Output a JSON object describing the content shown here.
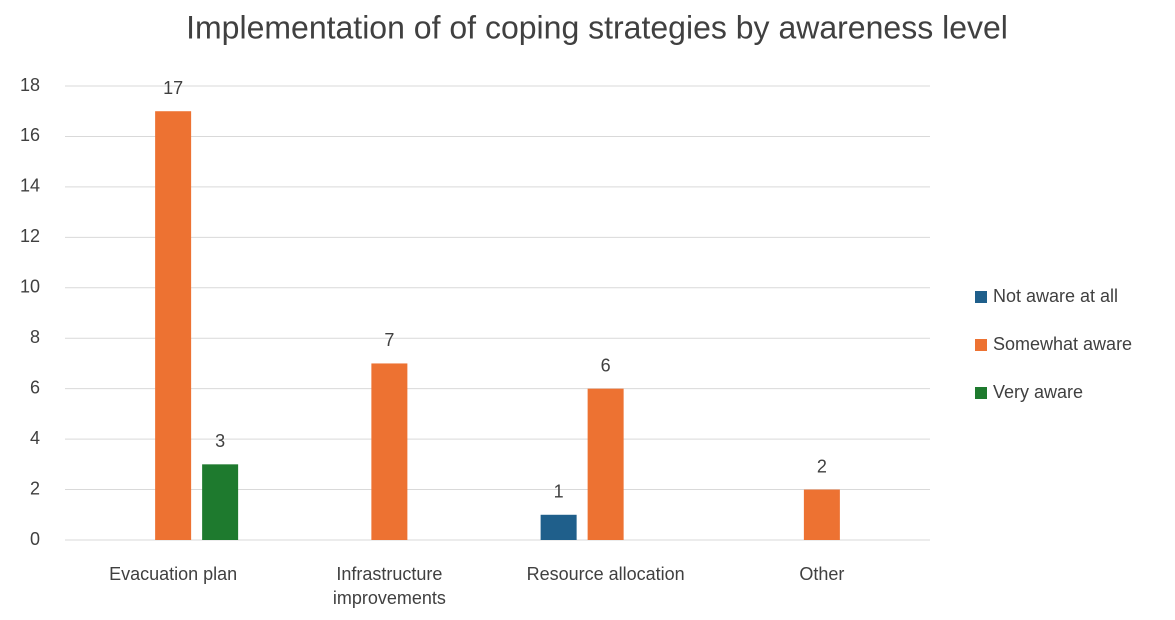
{
  "chart_data": {
    "type": "bar",
    "title": "Implementation of  of coping strategies by awareness level",
    "categories": [
      "Evacuation plan",
      "Infrastructure improvements",
      "Resource allocation",
      "Other"
    ],
    "series": [
      {
        "name": "Not aware at all",
        "color": "#1f5f8b",
        "values": [
          null,
          null,
          1,
          null
        ]
      },
      {
        "name": "Somewhat aware",
        "color": "#ed7232",
        "values": [
          17,
          7,
          6,
          2
        ]
      },
      {
        "name": "Very aware",
        "color": "#1e7a2e",
        "values": [
          3,
          null,
          null,
          null
        ]
      }
    ],
    "ylim": [
      0,
      18
    ],
    "yticks": [
      0,
      2,
      4,
      6,
      8,
      10,
      12,
      14,
      16,
      18
    ],
    "grid": true,
    "legend": "right"
  }
}
